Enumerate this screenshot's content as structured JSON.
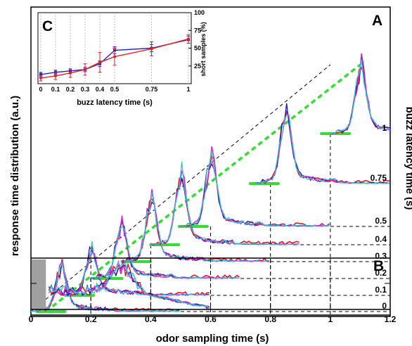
{
  "chart_data": [
    {
      "panel": "A",
      "type": "line",
      "xlabel": "odor sampling time (s)",
      "ylabel": "response time distribution (a.u.)",
      "y2label": "buzz latency time (s)",
      "xlim": [
        0,
        1.2
      ],
      "x_ticks": [
        "0",
        "0.2",
        "0.4",
        "0.6",
        "0.8",
        "1",
        "1.2"
      ],
      "buzz_latencies": [
        "0",
        "0.1",
        "0.2",
        "0.3",
        "0.4",
        "0.5",
        "0.75",
        "1"
      ],
      "latency_values": [
        0,
        0.1,
        0.2,
        0.3,
        0.4,
        0.5,
        0.75,
        1
      ],
      "trace_end_x": [
        0.5,
        0.6,
        0.7,
        0.8,
        0.9,
        1.0,
        1.2,
        1.2
      ],
      "peak_x": [
        0.1,
        0.2,
        0.3,
        0.4,
        0.5,
        0.6,
        0.85,
        1.1
      ],
      "peak_heights": [
        0.55,
        0.62,
        0.75,
        0.82,
        0.85,
        0.8,
        0.85,
        0.8
      ],
      "colors": [
        "#e8141e",
        "#1a1aa6",
        "#d020d8",
        "#30c8d8"
      ],
      "guide_color": "#33dd33"
    },
    {
      "panel": "B",
      "type": "line",
      "xlim": [
        0,
        1.2
      ],
      "shaded_region": [
        0,
        0.05
      ],
      "peak_x": 0.3,
      "colors": [
        "#e8141e",
        "#1a1aa6",
        "#d020d8",
        "#30c8d8"
      ]
    },
    {
      "panel": "C",
      "type": "line",
      "xlabel": "buzz latency time (s)",
      "ylabel": "short samples (%)",
      "x_ticks": [
        "0",
        "0.1",
        "0.2",
        "0.3",
        "0.4",
        "0.5",
        "0.75",
        "1"
      ],
      "y_ticks": [
        "25",
        "50",
        "75",
        "100"
      ],
      "ylim": [
        0,
        100
      ],
      "series": [
        {
          "color": "#2222cc",
          "x": [
            0,
            0.1,
            0.2,
            0.3,
            0.4,
            0.5,
            0.75,
            1
          ],
          "y": [
            13,
            16,
            18,
            20,
            28,
            47,
            50,
            62
          ],
          "err": [
            3,
            3,
            3,
            3,
            4,
            5,
            5,
            5
          ]
        },
        {
          "color": "#dd2222",
          "x": [
            0,
            0.1,
            0.2,
            0.3,
            0.4,
            0.5,
            0.75,
            1
          ],
          "y": [
            8,
            11,
            15,
            20,
            30,
            38,
            49,
            63
          ],
          "err": [
            4,
            5,
            6,
            8,
            14,
            12,
            10,
            6
          ]
        }
      ]
    }
  ],
  "labels": {
    "panel_a": "A",
    "panel_b": "B",
    "panel_c": "C",
    "xlabel": "odor sampling time (s)",
    "ylabel": "response time distribution (a.u.)",
    "y2label": "buzz latency time (s)",
    "c_xlabel": "buzz latency time (s)",
    "c_ylabel": "short samples (%)"
  }
}
